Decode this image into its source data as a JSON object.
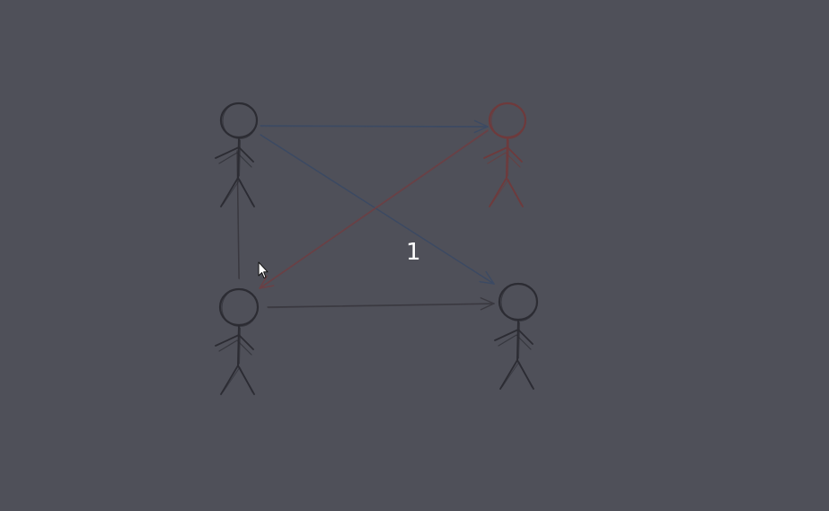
{
  "diagram": {
    "step_label": "1",
    "colors": {
      "background": "#4f5059",
      "figure_dark": "#2c2c33",
      "figure_red": "#6e3a3c",
      "arrow_blue": "#3c4a63",
      "arrow_red": "#6b4045",
      "arrow_dark": "#3a3940",
      "label": "#ffffff"
    },
    "figures": [
      {
        "id": "top-left",
        "color": "figure_dark"
      },
      {
        "id": "top-right",
        "color": "figure_red"
      },
      {
        "id": "bottom-left",
        "color": "figure_dark"
      },
      {
        "id": "bottom-right",
        "color": "figure_dark"
      }
    ],
    "edges": [
      {
        "from": "top-left",
        "to": "top-right",
        "color": "arrow_blue"
      },
      {
        "from": "top-left",
        "to": "bottom-right",
        "color": "arrow_blue"
      },
      {
        "from": "top-right",
        "to": "bottom-left",
        "color": "arrow_red"
      },
      {
        "from": "bottom-left",
        "to": "top-left",
        "color": "arrow_dark"
      },
      {
        "from": "bottom-left",
        "to": "bottom-right",
        "color": "arrow_dark"
      }
    ]
  }
}
